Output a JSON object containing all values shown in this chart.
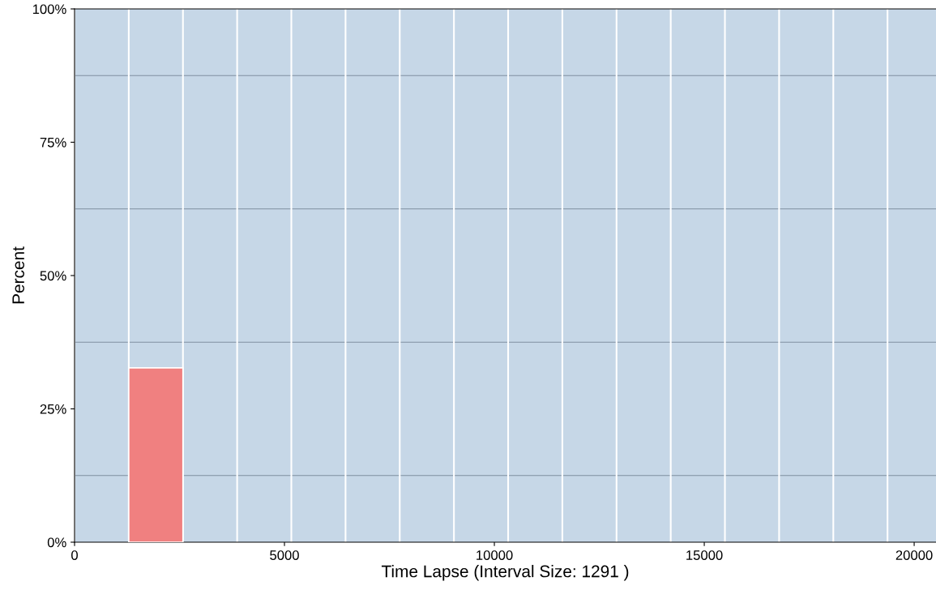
{
  "chart_data": {
    "type": "histogram",
    "xlabel": "Time Lapse (Interval Size: 1291 )",
    "ylabel": "Percent",
    "bins": [
      0,
      1291,
      2582,
      3873,
      5164,
      6455,
      7746,
      9037,
      10328,
      11619,
      12910,
      14201,
      15492,
      16783,
      18074,
      19365
    ],
    "values": [
      0,
      32.7,
      0,
      0,
      0,
      0,
      0,
      0,
      0,
      0,
      0,
      0,
      0,
      0,
      0
    ],
    "color": "#f08080",
    "xlim": [
      0,
      20520
    ],
    "xticks": [
      0,
      5000,
      10000,
      15000,
      20000
    ],
    "ylim": [
      0,
      100
    ],
    "yticks": [
      {
        "value": 0,
        "label": "0%"
      },
      {
        "value": 25,
        "label": "25%"
      },
      {
        "value": 50,
        "label": "50%"
      },
      {
        "value": 75,
        "label": "75%"
      },
      {
        "value": 100,
        "label": "100%"
      }
    ],
    "ref_lines": [
      {
        "axis": "y",
        "value": 12.5,
        "color": "#7f8fa0"
      },
      {
        "axis": "y",
        "value": 37.5,
        "color": "#7f8fa0"
      },
      {
        "axis": "y",
        "value": 62.5,
        "color": "#7f8fa0"
      },
      {
        "axis": "y",
        "value": 87.5,
        "color": "#7f8fa0"
      }
    ],
    "grid": false
  }
}
